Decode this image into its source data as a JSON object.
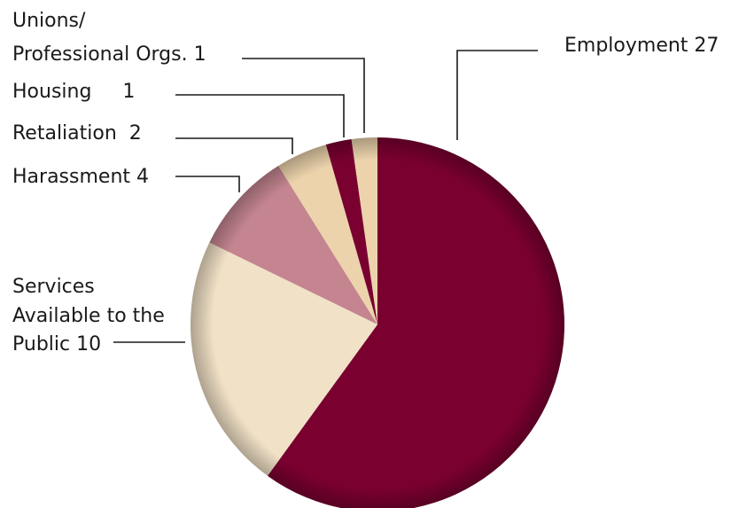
{
  "chart_data": {
    "type": "pie",
    "title": "",
    "slices": [
      {
        "key": "employment",
        "label": "Employment 27",
        "value": 27,
        "color": "#7a0030"
      },
      {
        "key": "services",
        "label_lines": [
          "Services",
          "Available to the",
          "Public 10"
        ],
        "value": 10,
        "color": "#f1e1c6"
      },
      {
        "key": "harassment",
        "label": "Harassment 4",
        "value": 4,
        "color": "#c48590"
      },
      {
        "key": "retaliation",
        "label": "Retaliation  2",
        "value": 2,
        "color": "#ecd3ac"
      },
      {
        "key": "housing",
        "label": "Housing     1",
        "value": 1,
        "color": "#7a0030"
      },
      {
        "key": "unions",
        "label_lines": [
          "Unions/",
          "Professional Orgs. 1"
        ],
        "value": 1,
        "color": "#ecd3ac"
      }
    ],
    "legend": "none",
    "grid": false
  }
}
